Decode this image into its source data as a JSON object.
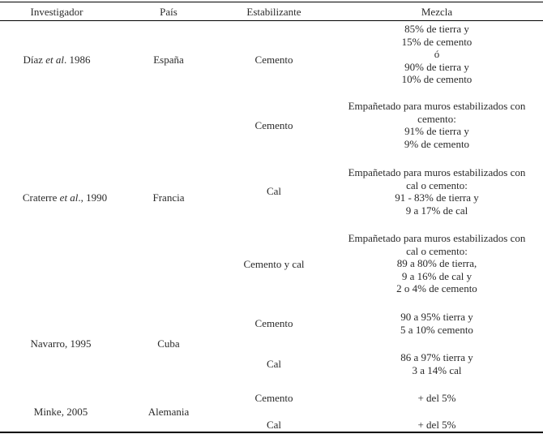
{
  "header": {
    "investigador": "Investigador",
    "pais": "País",
    "estabilizante": "Estabilizante",
    "mezcla": "Mezcla"
  },
  "rows": [
    {
      "investigador_pre": "Díaz ",
      "investigador_em": "et al",
      "investigador_post": ". 1986",
      "pais": "España",
      "estabilizante": "Cemento",
      "mezcla": [
        "85% de tierra y",
        "15% de cemento",
        "ó",
        "90% de tierra y",
        "10% de cemento"
      ]
    },
    {
      "estabilizante": "Cemento",
      "mezcla": [
        "Empañetado para muros estabilizados con",
        "cemento:",
        "91% de tierra  y",
        "9% de cemento"
      ]
    },
    {
      "investigador_pre": "Craterre ",
      "investigador_em": "et al",
      "investigador_post": "., 1990",
      "pais": "Francia",
      "estabilizante": "Cal",
      "mezcla": [
        "Empañetado para muros estabilizados con",
        "cal o cemento:",
        "91 - 83% de tierra  y",
        "9 a 17% de cal"
      ]
    },
    {
      "estabilizante": "Cemento y cal",
      "mezcla": [
        "Empañetado para muros estabilizados con",
        "cal o cemento:",
        "89 a 80% de tierra,",
        "9 a  16% de cal y",
        "2 o 4% de cemento"
      ]
    },
    {
      "investigador": "Navarro, 1995",
      "pais": "Cuba",
      "estabilizante": "Cemento",
      "mezcla": [
        "90 a 95% tierra y",
        "5 a 10% cemento"
      ]
    },
    {
      "estabilizante": "Cal",
      "mezcla": [
        "86 a 97% tierra y",
        "3 a 14% cal"
      ]
    },
    {
      "investigador": "Minke, 2005",
      "pais": "Alemania",
      "estabilizante": "Cemento",
      "mezcla": [
        "+ del 5%"
      ]
    },
    {
      "estabilizante": "Cal",
      "mezcla": [
        "+ del 5%"
      ]
    }
  ]
}
